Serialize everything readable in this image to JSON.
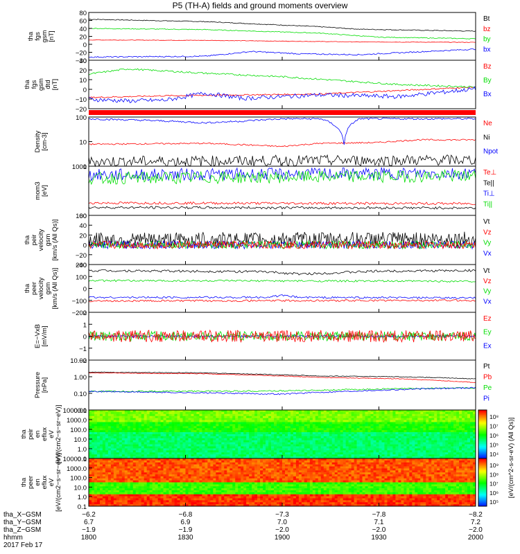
{
  "title": "P5 (TH-A) fields and ground moments overview",
  "colors": {
    "black": "#000000",
    "red": "#ff0000",
    "green": "#00dd00",
    "blue": "#0000ff"
  },
  "chart_data": [
    {
      "type": "line",
      "name": "fgs-gsm-total",
      "ylabel": [
        "tha",
        "fgs",
        "gsm",
        "[nT]"
      ],
      "yticks": [
        "80",
        "60",
        "40",
        "20",
        "0",
        "−20",
        "−40"
      ],
      "ylim": [
        -40,
        80
      ],
      "legend": [
        "Bt",
        "bz",
        "by",
        "bx"
      ],
      "series": [
        {
          "name": "Bt",
          "color": "#000000",
          "x": [
            0,
            0.3,
            0.6,
            0.7,
            1
          ],
          "values": [
            63,
            57,
            44,
            38,
            33
          ]
        },
        {
          "name": "bz",
          "color": "#ff0000",
          "x": [
            0,
            0.3,
            0.5,
            0.7,
            1
          ],
          "values": [
            11,
            10,
            8,
            6,
            5
          ]
        },
        {
          "name": "by",
          "color": "#00dd00",
          "x": [
            0,
            0.3,
            0.6,
            0.75,
            1
          ],
          "values": [
            40,
            37,
            28,
            18,
            14
          ]
        },
        {
          "name": "bx",
          "color": "#0000ff",
          "x": [
            0,
            0.3,
            0.42,
            0.55,
            0.7,
            1
          ],
          "values": [
            -32,
            -30,
            -18,
            -24,
            -26,
            -12
          ]
        }
      ]
    },
    {
      "type": "line",
      "name": "fgs-gsm-detrended",
      "ylabel": [
        "tha",
        "fgs",
        "gsm",
        "dtd",
        "[nT]"
      ],
      "yticks": [
        "30",
        "20",
        "10",
        "0",
        "−10",
        "−20"
      ],
      "ylim": [
        -26,
        30
      ],
      "legend": [
        "Bz",
        "By",
        "Bx"
      ],
      "series": [
        {
          "name": "Bz",
          "color": "#ff0000",
          "x": [
            0,
            0.2,
            0.4,
            0.6,
            0.8,
            1
          ],
          "values": [
            -13,
            -11,
            -10,
            -9,
            -5,
            -1
          ]
        },
        {
          "name": "By",
          "color": "#00dd00",
          "x": [
            0,
            0.1,
            0.3,
            0.5,
            0.6,
            0.8,
            1
          ],
          "values": [
            14,
            20,
            15,
            11,
            8,
            2,
            -1
          ]
        },
        {
          "name": "Bx",
          "color": "#0000ff",
          "x": [
            0,
            0.1,
            0.2,
            0.3,
            0.4,
            0.6,
            0.8,
            1
          ],
          "values": [
            -15,
            -17,
            -16,
            -8,
            -14,
            -10,
            -12,
            -3
          ]
        }
      ]
    },
    {
      "type": "line",
      "name": "density",
      "log": true,
      "ylabel": [
        "Density",
        "[cm-3]"
      ],
      "yticks": [
        "100",
        "10",
        "1"
      ],
      "ylim": [
        0.5,
        250
      ],
      "legend": [
        "Ne",
        "Ni",
        "Npot"
      ],
      "series": [
        {
          "name": "Ne",
          "color": "#ff0000",
          "x": [
            0,
            0.3,
            0.5,
            0.6,
            0.75,
            0.85,
            1
          ],
          "values": [
            8,
            9,
            6,
            9,
            10,
            14,
            14
          ]
        },
        {
          "name": "Npot",
          "color": "#0000ff",
          "x": [
            0,
            0.2,
            0.3,
            0.4,
            0.5,
            0.6,
            0.66,
            0.7,
            1
          ],
          "values": [
            200,
            150,
            120,
            150,
            200,
            200,
            8,
            200,
            200
          ]
        },
        {
          "name": "Ni",
          "color": "#000000",
          "x": [
            0,
            1
          ],
          "values": [
            0.9,
            1.1
          ]
        }
      ]
    },
    {
      "type": "line",
      "name": "temperature",
      "log": true,
      "ylabel": [
        "mom3",
        "[eV]"
      ],
      "yticks": [
        "1000",
        "100"
      ],
      "ylim": [
        50,
        5000
      ],
      "legend": [
        "Te⊥",
        "Te||",
        "Ti⊥",
        "Ti||"
      ],
      "series": [
        {
          "name": "Ti⊥",
          "color": "#0000ff",
          "x": [
            0,
            1
          ],
          "values": [
            2200,
            2600
          ]
        },
        {
          "name": "Ti||",
          "color": "#00dd00",
          "x": [
            0,
            1
          ],
          "values": [
            1600,
            2000
          ]
        },
        {
          "name": "Te⊥",
          "color": "#ff0000",
          "x": [
            0,
            1
          ],
          "values": [
            160,
            150
          ]
        },
        {
          "name": "Te||",
          "color": "#000000",
          "x": [
            0,
            1
          ],
          "values": [
            105,
            100
          ]
        }
      ]
    },
    {
      "type": "line",
      "name": "velocity-fast",
      "ylabel": [
        "tha",
        "peir",
        "velocity",
        "gsm",
        "[km/s (All Qs)]"
      ],
      "yticks": [
        "60",
        "40",
        "20",
        "0",
        "−20",
        "−40"
      ],
      "ylim": [
        -40,
        60
      ],
      "legend": [
        "Vt",
        "Vz",
        "Vy",
        "Vx"
      ],
      "series": [
        {
          "name": "Vt",
          "color": "#000000",
          "x": [
            0,
            1
          ],
          "values": [
            10,
            12
          ]
        },
        {
          "name": "Vx",
          "color": "#0000ff",
          "x": [
            0,
            1
          ],
          "values": [
            0,
            0
          ]
        },
        {
          "name": "Vy",
          "color": "#00dd00",
          "x": [
            0,
            1
          ],
          "values": [
            0,
            0
          ]
        },
        {
          "name": "Vz",
          "color": "#ff0000",
          "x": [
            0,
            1
          ],
          "values": [
            0,
            0
          ]
        }
      ]
    },
    {
      "type": "line",
      "name": "velocity-slow",
      "ylabel": [
        "tha",
        "peer",
        "velocity",
        "gsm",
        "[km/s (All Qs)]"
      ],
      "yticks": [
        "200",
        "100",
        "0",
        "−100",
        "−200"
      ],
      "ylim": [
        -200,
        200
      ],
      "legend": [
        "Vt",
        "Vz",
        "Vy",
        "Vx"
      ],
      "series": [
        {
          "name": "Vt",
          "color": "#000000",
          "x": [
            0,
            0.45,
            0.55,
            0.75,
            1
          ],
          "values": [
            150,
            140,
            120,
            145,
            150
          ]
        },
        {
          "name": "Vy",
          "color": "#00dd00",
          "x": [
            0,
            1
          ],
          "values": [
            65,
            60
          ]
        },
        {
          "name": "Vx",
          "color": "#0000ff",
          "x": [
            0,
            0.45,
            0.5,
            0.55,
            1
          ],
          "values": [
            -75,
            -75,
            -60,
            -75,
            -80
          ]
        },
        {
          "name": "Vz",
          "color": "#ff0000",
          "x": [
            0,
            1
          ],
          "values": [
            -105,
            -100
          ]
        }
      ]
    },
    {
      "type": "line",
      "name": "efield",
      "ylabel": [
        "E=−VxB",
        "[mV/m]"
      ],
      "yticks": [
        "2",
        "1",
        "0",
        "−1",
        "−2"
      ],
      "ylim": [
        -2,
        2
      ],
      "legend": [
        "Ez",
        "Ey",
        "Ex"
      ],
      "series": [
        {
          "name": "Ex",
          "color": "#0000ff",
          "x": [
            0,
            1
          ],
          "values": [
            0,
            0
          ]
        },
        {
          "name": "Ey",
          "color": "#00dd00",
          "x": [
            0,
            1
          ],
          "values": [
            0,
            0
          ]
        },
        {
          "name": "Ez",
          "color": "#ff0000",
          "x": [
            0,
            1
          ],
          "values": [
            0,
            0
          ]
        }
      ]
    },
    {
      "type": "line",
      "name": "pressure",
      "log": true,
      "ylabel": [
        "Pressure",
        "[nPa]"
      ],
      "yticks": [
        "10.00",
        "1.00",
        "0.10",
        "0.01"
      ],
      "ylim": [
        0.01,
        10
      ],
      "legend": [
        "Pt",
        "Pb",
        "Pe",
        "Pi"
      ],
      "series": [
        {
          "name": "Pt",
          "color": "#000000",
          "x": [
            0,
            0.3,
            0.6,
            0.8,
            1
          ],
          "values": [
            1.9,
            1.7,
            1.1,
            1.0,
            0.75
          ]
        },
        {
          "name": "Pb",
          "color": "#ff0000",
          "x": [
            0,
            0.3,
            0.6,
            0.8,
            1
          ],
          "values": [
            1.7,
            1.5,
            0.9,
            0.75,
            0.45
          ]
        },
        {
          "name": "Pe",
          "color": "#00dd00",
          "x": [
            0,
            0.5,
            1
          ],
          "values": [
            0.13,
            0.14,
            0.22
          ]
        },
        {
          "name": "Pi",
          "color": "#0000ff",
          "x": [
            0,
            0.5,
            1
          ],
          "values": [
            0.13,
            0.09,
            0.22
          ]
        }
      ]
    },
    {
      "type": "heatmap",
      "name": "peir-spectrogram",
      "ylabel": [
        "tha",
        "peir",
        "en",
        "eflux",
        "eV",
        "[eV/(cm2−s−sr−eV)]"
      ],
      "yticks": [
        "10000.0",
        "1000.0",
        "100.0",
        "10.0",
        "1.0",
        "0.1"
      ]
    },
    {
      "type": "heatmap",
      "name": "peer-spectrogram",
      "ylabel": [
        "tha",
        "peer",
        "en",
        "eflux",
        "eV",
        "[eV/(cm2−s−sr−eV)]"
      ],
      "yticks": [
        "10000.0",
        "1000.0",
        "100.0",
        "10.0",
        "1.0",
        "0.1"
      ]
    }
  ],
  "colorbars": [
    {
      "ticks": [
        "10⁸",
        "10⁷",
        "10⁶",
        "10⁵",
        "10⁴"
      ]
    },
    {
      "ticks": [
        "10⁹",
        "10⁸",
        "10⁷",
        "10⁶",
        "10⁵"
      ]
    }
  ],
  "colorbar_label": "[eV/(cm^2-s-sr-eV) (All Qs)]",
  "xaxis": {
    "row_labels": [
      "tha_X−GSM",
      "tha_Y−GSM",
      "tha_Z−GSM",
      "hhmm",
      "2017 Feb 17"
    ],
    "columns": [
      {
        "x": "−6.2",
        "y": "6.7",
        "z": "−1.9",
        "hhmm": "1800"
      },
      {
        "x": "−6.8",
        "y": "6.9",
        "z": "−1.9",
        "hhmm": "1830"
      },
      {
        "x": "−7.3",
        "y": "7.0",
        "z": "−2.0",
        "hhmm": "1900"
      },
      {
        "x": "−7.8",
        "y": "7.1",
        "z": "−2.0",
        "hhmm": "1930"
      },
      {
        "x": "−8.2",
        "y": "7.2",
        "z": "−2.0",
        "hhmm": "2000"
      }
    ]
  }
}
